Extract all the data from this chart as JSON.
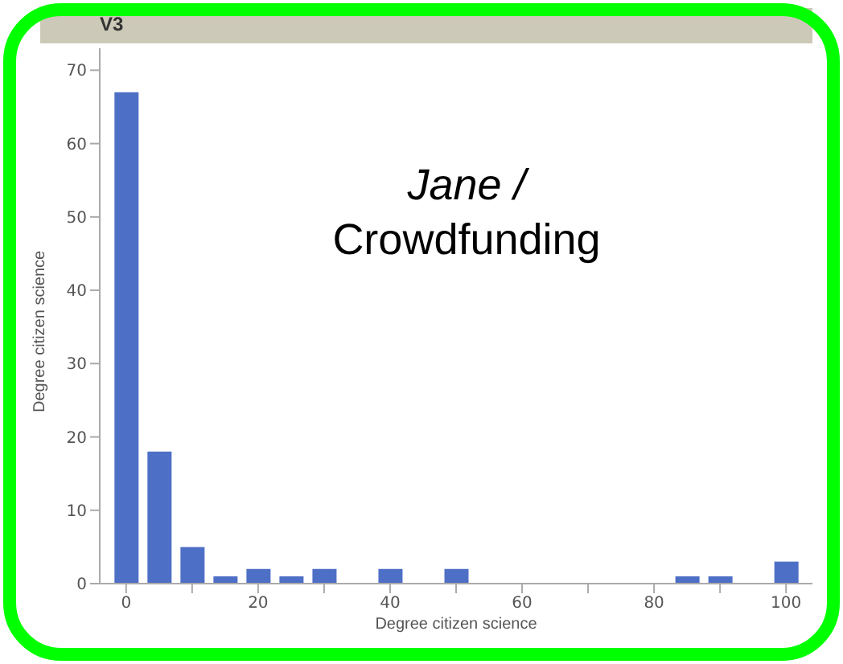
{
  "chart_data": {
    "type": "bar",
    "title": "Jane / Crowdfunding",
    "xlabel": "Degree citizen science",
    "ylabel": "Degree citizen science",
    "annotations": [
      "V3"
    ],
    "x": [
      0,
      5,
      10,
      15,
      20,
      25,
      30,
      40,
      50,
      85,
      90,
      100
    ],
    "series": [
      {
        "color": "#4e6fc6",
        "values": [
          67,
          18,
          5,
          1,
          2,
          1,
          2,
          2,
          2,
          1,
          1,
          3
        ]
      }
    ],
    "xlim": [
      -4,
      104
    ],
    "xticks": [
      0,
      {
        "value": 10,
        "label": null
      },
      20,
      {
        "value": 30,
        "label": null
      },
      40,
      {
        "value": 50,
        "label": null
      },
      60,
      {
        "value": 70,
        "label": null
      },
      80,
      {
        "value": 90,
        "label": null
      },
      100
    ],
    "ylim": [
      0,
      73
    ],
    "yticks": [
      0,
      10,
      20,
      30,
      40,
      50,
      60,
      70
    ],
    "grid": false,
    "legend": false
  }
}
